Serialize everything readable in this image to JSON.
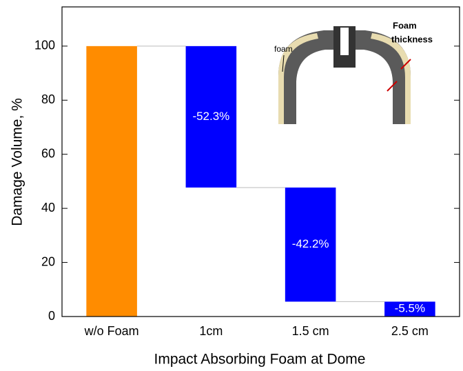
{
  "chart_data": {
    "type": "waterfall",
    "x_label": "Impact Absorbing Foam at Dome",
    "y_label": "Damage Volume, %",
    "categories": [
      "w/o Foam",
      "1cm",
      "1.5 cm",
      "2.5 cm"
    ],
    "values": [
      100,
      -52.3,
      -42.2,
      -5.5
    ],
    "value_labels": [
      null,
      "-52.3%",
      "-42.2%",
      "-5.5%"
    ],
    "colors": [
      "#ff8c00",
      "#0000ff",
      "#0000ff",
      "#0000ff"
    ],
    "ylim": [
      0,
      114.5
    ],
    "yticks": [
      0,
      20,
      40,
      60,
      80,
      100
    ],
    "annotations": [
      "foam",
      "Foam",
      "thickness"
    ]
  }
}
